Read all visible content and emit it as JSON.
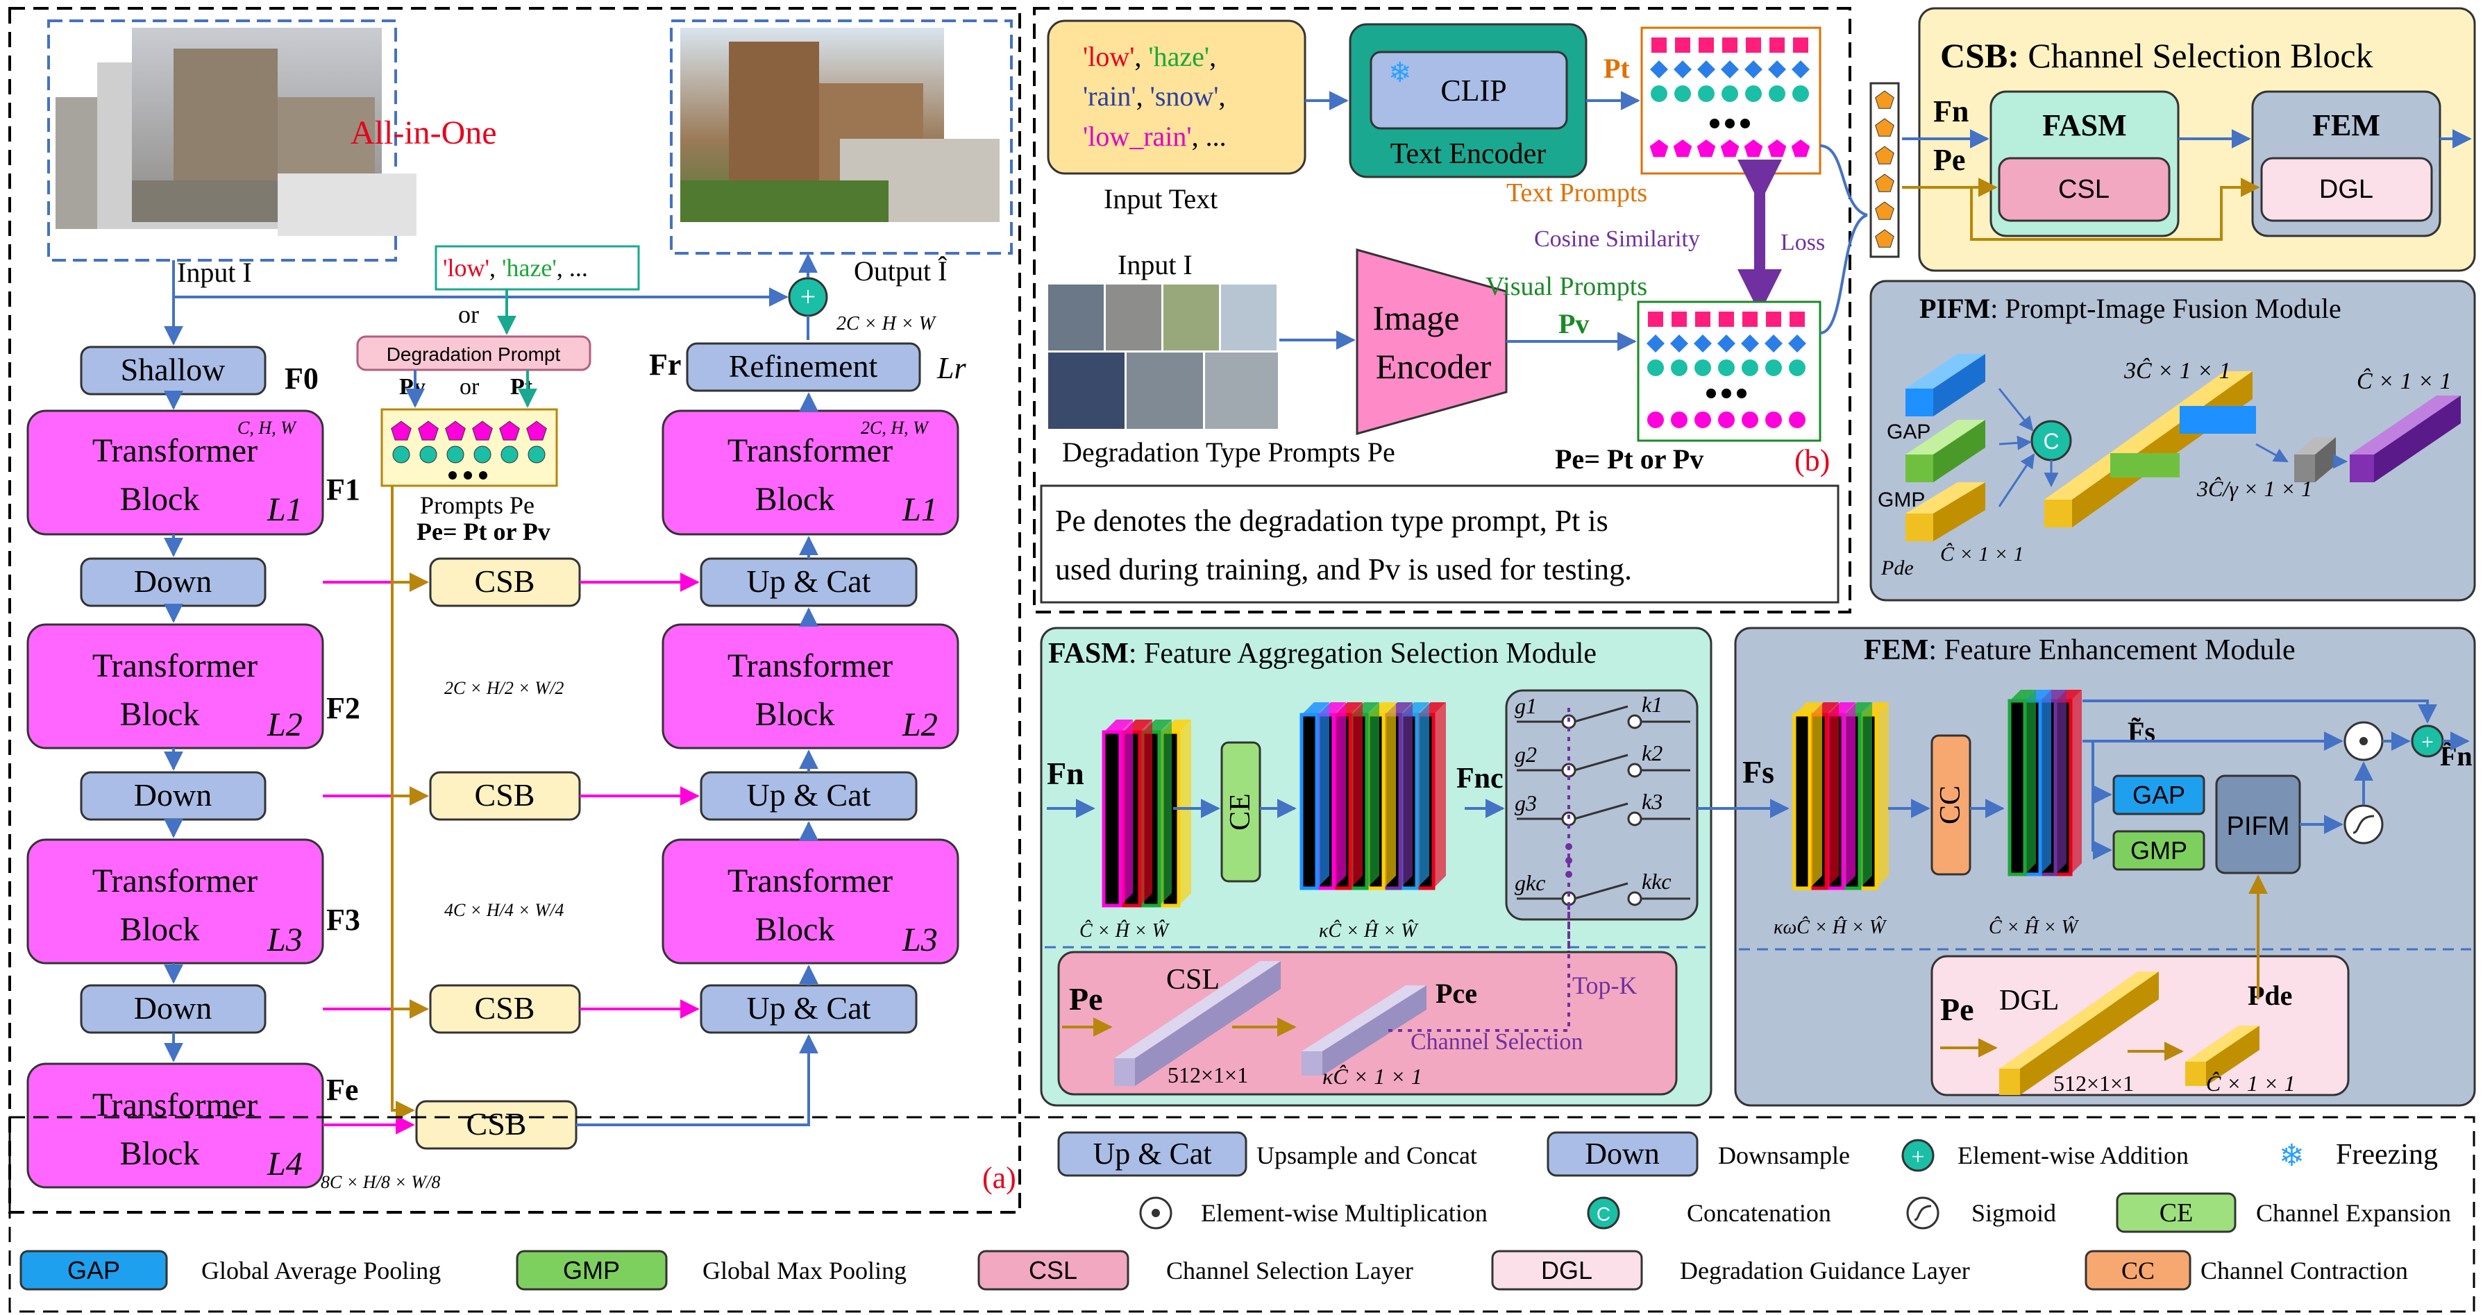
{
  "a": {
    "title": "All-in-One",
    "input_label": "Input I",
    "output_label": "Output Î",
    "prompt_tags": [
      "'low'",
      "'haze'",
      "..."
    ],
    "or": "or",
    "degradation_prompt": "Degradation Prompt",
    "pv": "Pv",
    "pt": "Pt",
    "prompts_label": "Prompts Pe",
    "pe_eq": "Pe= Pt or Pv",
    "shallow": "Shallow",
    "f0": "F0",
    "refinement": "Refinement",
    "fr": "Fr",
    "lr": "Lr",
    "ref_dim": "2C × H × W",
    "enc_blocks": [
      {
        "line1": "Transformer",
        "line2": "Block",
        "l": "L1",
        "f": "F1",
        "dim": "C, H, W"
      },
      {
        "line1": "Transformer",
        "line2": "Block",
        "l": "L2",
        "f": "F2",
        "dim": "2C × H/2 × W/2"
      },
      {
        "line1": "Transformer",
        "line2": "Block",
        "l": "L3",
        "f": "F3",
        "dim": "4C × H/4 × W/4"
      },
      {
        "line1": "Transformer",
        "line2": "Block",
        "l": "L4",
        "f": "Fe",
        "dim": "8C × H/8 × W/8"
      }
    ],
    "dec_blocks": [
      {
        "line1": "Transformer",
        "line2": "Block",
        "l": "L1",
        "dim": "2C, H, W"
      },
      {
        "line1": "Transformer",
        "line2": "Block",
        "l": "L2"
      },
      {
        "line1": "Transformer",
        "line2": "Block",
        "l": "L3"
      }
    ],
    "down": "Down",
    "csb": "CSB",
    "upcat": "Up & Cat",
    "panel_tag": "(a)"
  },
  "b": {
    "text_tags": [
      {
        "t": "'low'",
        "color": "#e8001c"
      },
      {
        "t": "'haze'",
        "color": "#1aa838"
      },
      {
        "t": "'rain'",
        "color": "#2a3fa0"
      },
      {
        "t": "'snow'",
        "color": "#2a3fa0"
      },
      {
        "t": "'low_rain'",
        "color": "#e000c8"
      },
      {
        "t": "...",
        "color": "#000000"
      }
    ],
    "input_text": "Input Text",
    "clip": "CLIP",
    "text_encoder": "Text Encoder",
    "pt": "Pt",
    "text_prompts": "Text Prompts",
    "cosine": "Cosine Similarity",
    "loss": "Loss",
    "input_i": "Input I",
    "image_encoder_1": "Image",
    "image_encoder_2": "Encoder",
    "visual_prompts": "Visual Prompts",
    "pv": "Pv",
    "deg_type": "Degradation Type Prompts Pe",
    "pe_eq": "Pe= Pt or Pv",
    "panel_tag": "(b)",
    "note_line1": "Pe denotes the degradation type prompt, Pt  is",
    "note_line2": "used during training, and Pv  is used for testing."
  },
  "csb": {
    "title_bold": "CSB:",
    "title_rest": " Channel Selection Block",
    "fn": "Fn",
    "pe": "Pe",
    "fasm": "FASM",
    "csl": "CSL",
    "fem": "FEM",
    "dgl": "DGL"
  },
  "pifm": {
    "title_bold": "PIFM",
    "title_rest": ": Prompt-Image Fusion Module",
    "gap": "GAP",
    "gmp": "GMP",
    "pde": "Pde",
    "c_dim": "Ĉ × 1 × 1",
    "concat": "C",
    "dim_3c": "3Ĉ × 1 × 1",
    "dim_3c_gamma": "3Ĉ/γ × 1 × 1",
    "dim_out": "Ĉ × 1 × 1"
  },
  "fasm": {
    "title_bold": "FASM",
    "title_rest": ": Feature Aggregation Selection Module",
    "fn": "Fn",
    "ce": "CE",
    "fnc": "Fnc",
    "dim1": "Ĉ × Ĥ × Ŵ",
    "dim2": "κĈ × Ĥ × Ŵ",
    "g": [
      "g1",
      "g2",
      "g3",
      "gkc"
    ],
    "k": [
      "k1",
      "k2",
      "k3",
      "kkc"
    ],
    "pe": "Pe",
    "csl": "CSL",
    "csl_dim": "512×1×1",
    "pce": "Pce",
    "pce_dim": "κĈ × 1 × 1",
    "topk": "Top-K",
    "channel_selection": "Channel Selection"
  },
  "fem": {
    "title_bold": "FEM",
    "title_rest": ": Feature Enhancement Module",
    "fs": "Fs",
    "cc": "CC",
    "dim1": "κωĈ × Ĥ × Ŵ",
    "dim2": "Ĉ × Ĥ × Ŵ",
    "fs_tilde": "F̃s",
    "fn_tilde": "F̃n",
    "gap": "GAP",
    "gmp": "GMP",
    "pifm": "PIFM",
    "pe": "Pe",
    "dgl": "DGL",
    "dgl_dim": "512×1×1",
    "pde": "Pde",
    "pde_dim": "Ĉ × 1 × 1"
  },
  "legend": {
    "upcat": "Up & Cat",
    "upcat_desc": "Upsample and Concat",
    "down": "Down",
    "down_desc": "Downsample",
    "add_desc": "Element-wise Addition",
    "freeze_desc": "Freezing",
    "mult_desc": "Element-wise Multiplication",
    "concat_symbol": "C",
    "concat_desc": "Concatenation",
    "sigmoid_desc": "Sigmoid",
    "ce": "CE",
    "ce_desc": "Channel Expansion",
    "gap": "GAP",
    "gap_desc": "Global Average Pooling",
    "gmp": "GMP",
    "gmp_desc": "Global Max Pooling",
    "csl": "CSL",
    "csl_desc": "Channel Selection Layer",
    "dgl": "DGL",
    "dgl_desc": "Degradation Guidance Layer",
    "cc": "CC",
    "cc_desc": "Channel Contraction"
  },
  "colors": {
    "lavender": "#a9bde6",
    "magenta": "#ff66ff",
    "cream": "#fff2c2",
    "teal": "#1aa890",
    "pink": "#f2a8c0",
    "mint": "#b8eedc",
    "blue_gray": "#b4c2d6",
    "arrow_blue": "#4472c4",
    "arrow_magenta": "#ff00dd",
    "arrow_gold": "#b8860b",
    "purple": "#7030a0"
  }
}
